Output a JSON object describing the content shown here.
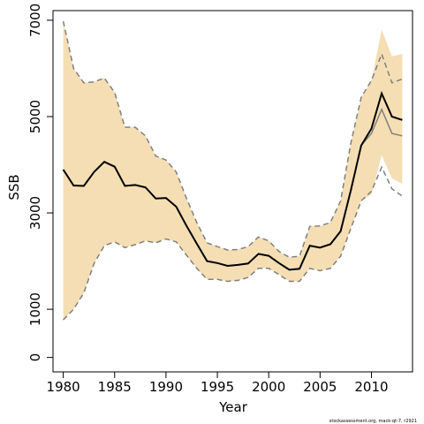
{
  "chart_data": {
    "type": "line",
    "xlabel": "Year",
    "ylabel": "SSB",
    "xlim": [
      1979,
      2014
    ],
    "ylim": [
      -300,
      7200
    ],
    "x_ticks": [
      1980,
      1985,
      1990,
      1995,
      2000,
      2005,
      2010
    ],
    "y_ticks": [
      0,
      1000,
      3000,
      5000,
      7000
    ],
    "grid": false,
    "legend": "none",
    "colors": {
      "band": "#f5deb3",
      "main_line": "#000000",
      "secondary_line": "#808080",
      "dashed_line": "#808080",
      "frame": "#000000"
    },
    "x": [
      1980,
      1981,
      1982,
      1983,
      1984,
      1985,
      1986,
      1987,
      1988,
      1989,
      1990,
      1991,
      1992,
      1993,
      1994,
      1995,
      1996,
      1997,
      1998,
      1999,
      2000,
      2001,
      2002,
      2003,
      2004,
      2005,
      2006,
      2007,
      2008,
      2009,
      2010,
      2011,
      2012,
      2013
    ],
    "band": {
      "upper": [
        6980,
        6000,
        5700,
        5720,
        5800,
        5500,
        4780,
        4780,
        4600,
        4180,
        4100,
        3850,
        3300,
        2800,
        2380,
        2300,
        2230,
        2240,
        2300,
        2500,
        2420,
        2200,
        2080,
        2100,
        2720,
        2730,
        2800,
        3250,
        4450,
        5400,
        5750,
        6800,
        6250,
        6300
      ],
      "lower": [
        780,
        1000,
        1340,
        1950,
        2320,
        2400,
        2280,
        2340,
        2420,
        2380,
        2460,
        2400,
        2120,
        1850,
        1620,
        1620,
        1580,
        1600,
        1660,
        1850,
        1850,
        1720,
        1580,
        1580,
        1850,
        1800,
        1850,
        2100,
        2680,
        3250,
        3380,
        4200,
        3720,
        3600
      ]
    },
    "series": [
      {
        "values": [
          3900,
          3570,
          3560,
          3850,
          4060,
          3960,
          3560,
          3580,
          3530,
          3300,
          3310,
          3130,
          2730,
          2360,
          2000,
          1960,
          1900,
          1920,
          1950,
          2150,
          2110,
          1960,
          1820,
          1840,
          2320,
          2280,
          2350,
          2620,
          3470,
          4400,
          4750,
          5480,
          5000,
          4930
        ]
      },
      {
        "values": [
          3900,
          3570,
          3560,
          3850,
          4060,
          3960,
          3560,
          3580,
          3530,
          3300,
          3310,
          3130,
          2730,
          2360,
          2000,
          1960,
          1900,
          1920,
          1950,
          2150,
          2110,
          1960,
          1820,
          1840,
          2320,
          2280,
          2350,
          2620,
          3470,
          4400,
          4650,
          5150,
          4650,
          4600
        ]
      }
    ],
    "dashed_upper": [
      6980,
      6000,
      5700,
      5720,
      5800,
      5500,
      4780,
      4780,
      4600,
      4180,
      4100,
      3850,
      3300,
      2800,
      2380,
      2300,
      2230,
      2240,
      2300,
      2500,
      2420,
      2200,
      2080,
      2100,
      2720,
      2730,
      2800,
      3250,
      4450,
      5400,
      5750,
      6300,
      5700,
      5780
    ],
    "dashed_lower": [
      780,
      1000,
      1340,
      1950,
      2320,
      2400,
      2280,
      2340,
      2420,
      2380,
      2460,
      2400,
      2120,
      1850,
      1620,
      1620,
      1580,
      1600,
      1660,
      1850,
      1850,
      1720,
      1580,
      1580,
      1850,
      1800,
      1850,
      2100,
      2680,
      3250,
      3450,
      3950,
      3500,
      3350
    ],
    "footer": "stockassessment.org, mack-qt-7, r2921"
  }
}
